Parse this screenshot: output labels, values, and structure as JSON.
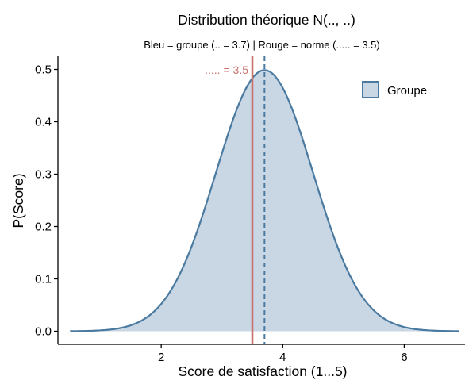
{
  "chart_data": {
    "type": "area",
    "title": "Distribution théorique N(.., ..)",
    "subtitle": "Bleu = groupe (.. = 3.7)  |  Rouge = norme (..... = 3.5)",
    "xlabel": "Score de satisfaction (1...5)",
    "ylabel": "P(Score)",
    "xlim": [
      0.3,
      7.0
    ],
    "ylim": [
      -0.025,
      0.525
    ],
    "x_ticks": [
      2,
      4,
      6
    ],
    "x_tick_labels": [
      "2",
      "4",
      "6"
    ],
    "y_ticks": [
      0.0,
      0.1,
      0.2,
      0.3,
      0.4,
      0.5
    ],
    "y_tick_labels": [
      "0.0",
      "0.1",
      "0.2",
      "0.3",
      "0.4",
      "0.5"
    ],
    "grid": false,
    "legend": {
      "position": "top-right",
      "entries": [
        "Groupe"
      ]
    },
    "series": [
      {
        "name": "Groupe",
        "distribution": "normal",
        "mean": 3.7,
        "sd": 0.8,
        "x_range": [
          0.5,
          6.9
        ],
        "fill": "#c9d6e4",
        "line": "#4a7aa0"
      }
    ],
    "reference_lines": [
      {
        "x": 3.7,
        "style": "dashed",
        "color": "#4a7aa0"
      },
      {
        "x": 3.5,
        "style": "solid",
        "color": "#c8736e",
        "label": "..... = 3.5"
      }
    ],
    "colors": {
      "group": "#4a7aa0",
      "group_fill": "#c9d6e4",
      "norm": "#c8736e"
    }
  }
}
